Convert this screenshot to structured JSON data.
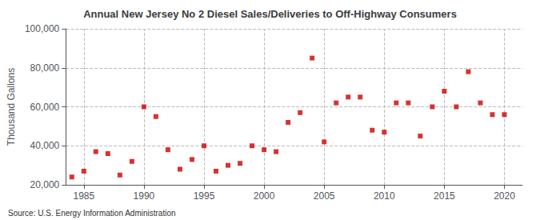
{
  "chart_data": {
    "type": "scatter",
    "title": "Annual New Jersey No 2 Diesel Sales/Deliveries to Off-Highway Consumers",
    "ylabel": "Thousand Gallons",
    "annotations": [
      "Source: U.S. Energy Information Administration"
    ],
    "x": [
      1984,
      1985,
      1986,
      1987,
      1988,
      1989,
      1990,
      1991,
      1992,
      1993,
      1994,
      1995,
      1996,
      1997,
      1998,
      1999,
      2000,
      2001,
      2002,
      2003,
      2004,
      2005,
      2006,
      2007,
      2008,
      2009,
      2010,
      2011,
      2012,
      2013,
      2014,
      2015,
      2016,
      2017,
      2018,
      2019,
      2020
    ],
    "values": [
      24000,
      27000,
      37000,
      36000,
      25000,
      32000,
      60000,
      55000,
      38000,
      28000,
      33000,
      40000,
      27000,
      30000,
      31000,
      40000,
      38000,
      37000,
      52000,
      57000,
      85000,
      42000,
      62000,
      65000,
      65000,
      48000,
      47000,
      62000,
      62000,
      45000,
      60000,
      68000,
      60000,
      78000,
      62000,
      56000,
      56000
    ],
    "color": "#cc0000",
    "marker": "square",
    "xlim": [
      1983.5,
      2021.5
    ],
    "xticks": [
      1985,
      1990,
      1995,
      2000,
      2005,
      2010,
      2015,
      2020
    ],
    "ylim": [
      20000,
      100000
    ],
    "yticks": [
      {
        "value": 20000,
        "label": "20,000"
      },
      {
        "value": 40000,
        "label": "40,000"
      },
      {
        "value": 60000,
        "label": "60,000"
      },
      {
        "value": 80000,
        "label": "80,000"
      },
      {
        "value": 100000,
        "label": "100,000"
      }
    ],
    "grid": true
  }
}
